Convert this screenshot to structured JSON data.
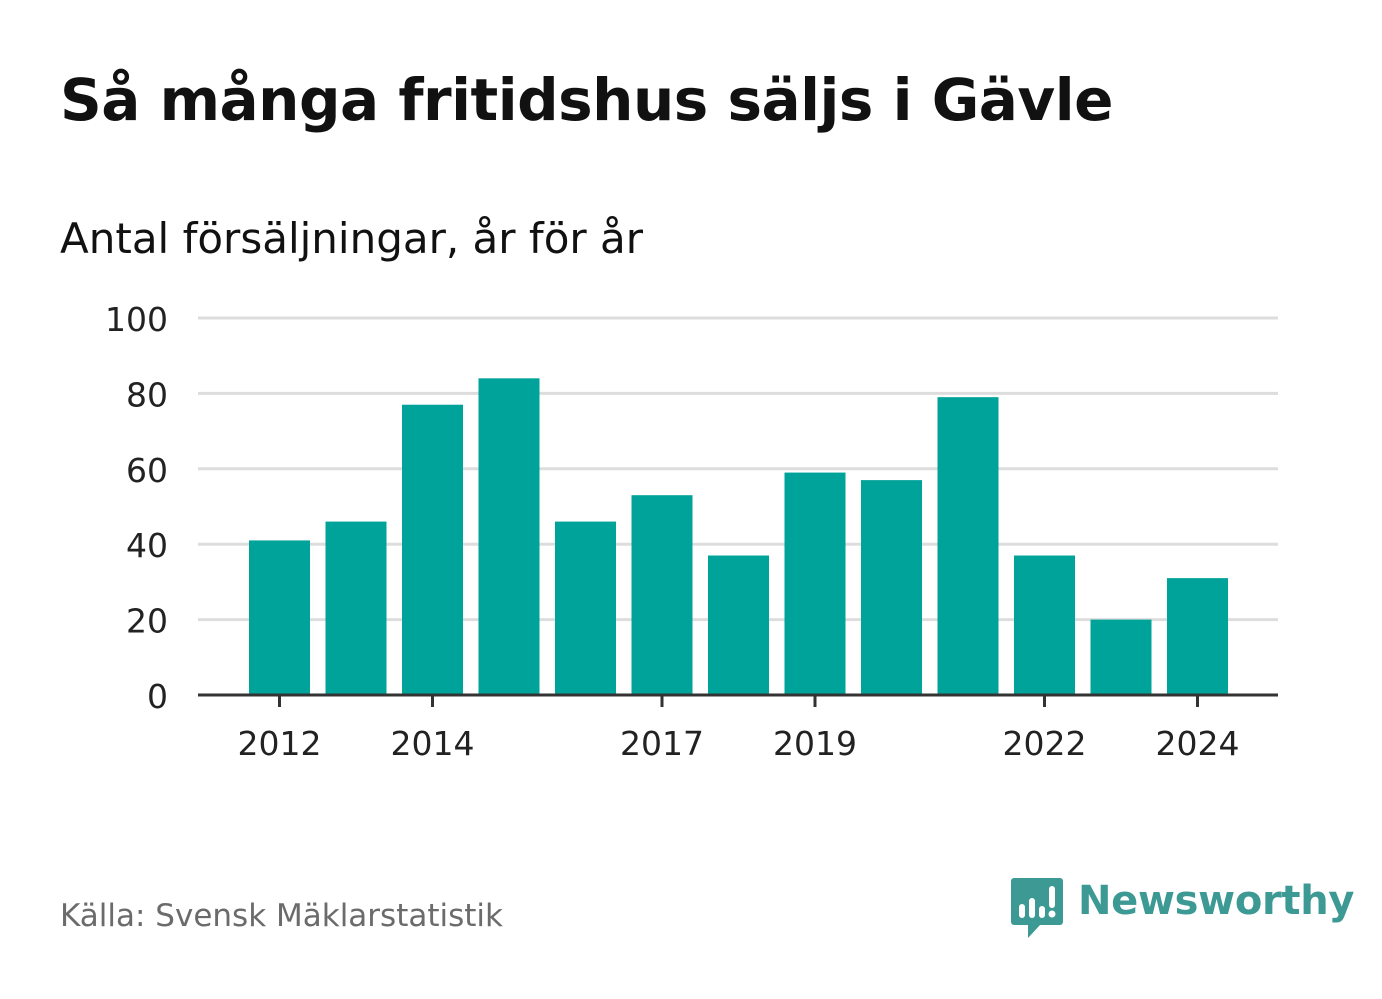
{
  "header": {
    "title": "Så många fritidshus säljs i Gävle",
    "subtitle": "Antal försäljningar, år för år"
  },
  "footer": {
    "source": "Källa: Svensk Mäklarstatistik",
    "brand": "Newsworthy",
    "brand_icon": "bar-chart-speech-bubble-icon"
  },
  "colors": {
    "bar": "#00a39a",
    "grid": "#dddddd",
    "axis": "#333333",
    "brand": "#3d9994"
  },
  "chart_data": {
    "type": "bar",
    "categories": [
      "2012",
      "2013",
      "2014",
      "2015",
      "2016",
      "2017",
      "2018",
      "2019",
      "2020",
      "2021",
      "2022",
      "2023",
      "2024"
    ],
    "values": [
      41,
      46,
      77,
      84,
      46,
      53,
      37,
      59,
      57,
      79,
      37,
      20,
      31
    ],
    "x_tick_labels": [
      "2012",
      "2014",
      "2017",
      "2019",
      "2022",
      "2024"
    ],
    "y_ticks": [
      0,
      20,
      40,
      60,
      80,
      100
    ],
    "ylim": [
      0,
      100
    ],
    "grid": true,
    "legend": "none"
  }
}
